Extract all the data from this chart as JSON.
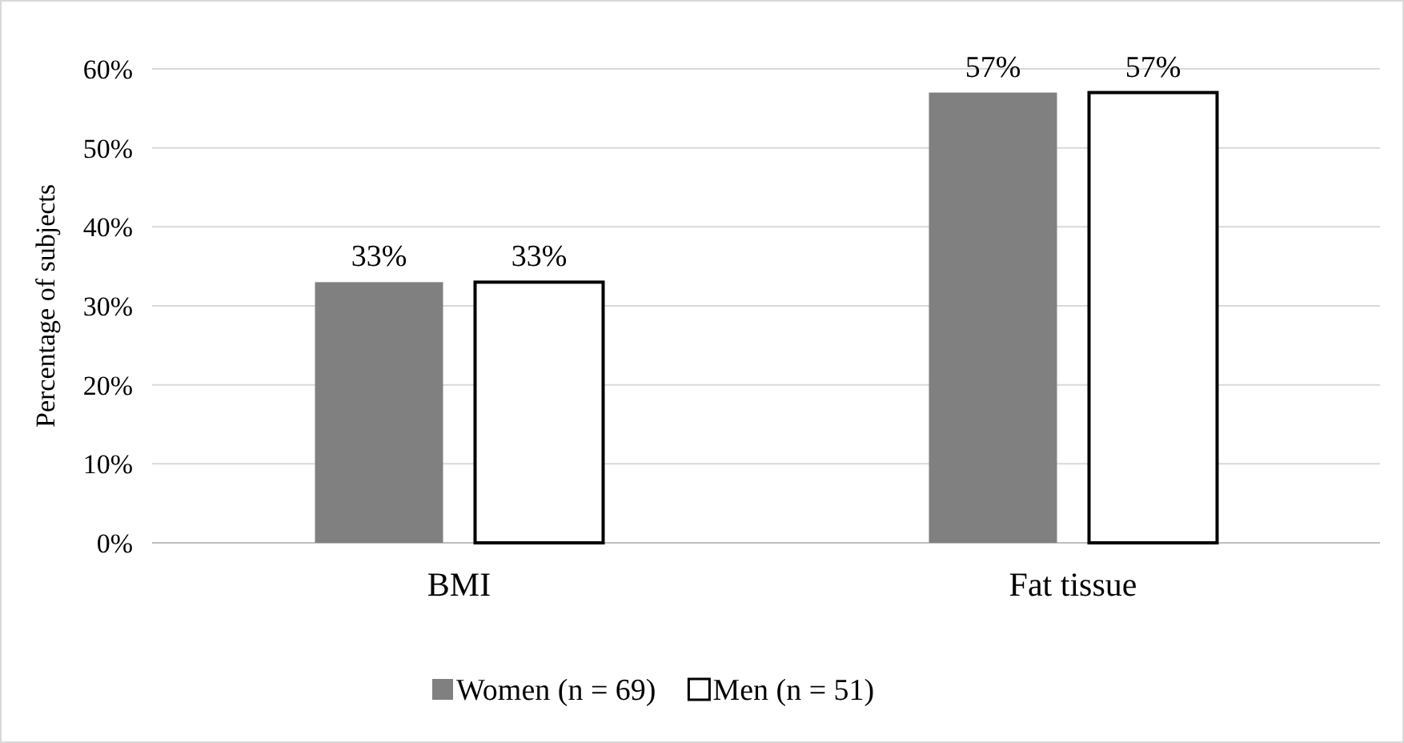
{
  "chart_data": {
    "type": "bar",
    "ylabel": "Percentage of subjects",
    "categories": [
      "BMI",
      "Fat tissue"
    ],
    "series": [
      {
        "name": "Women (n = 69)",
        "color": "#808080",
        "values": [
          33,
          57
        ],
        "value_labels": [
          "33%",
          "57%"
        ]
      },
      {
        "name": "Men (n = 51)",
        "color": "#ffffff",
        "values": [
          33,
          57
        ],
        "value_labels": [
          "33%",
          "57%"
        ]
      }
    ],
    "ylim": [
      0,
      60
    ],
    "yticks": [
      {
        "value": 0,
        "label": "0%"
      },
      {
        "value": 10,
        "label": "10%"
      },
      {
        "value": 20,
        "label": "20%"
      },
      {
        "value": 30,
        "label": "30%"
      },
      {
        "value": 40,
        "label": "40%"
      },
      {
        "value": 50,
        "label": "50%"
      },
      {
        "value": 60,
        "label": "60%"
      }
    ],
    "grid": "y",
    "legend": "bottom"
  }
}
